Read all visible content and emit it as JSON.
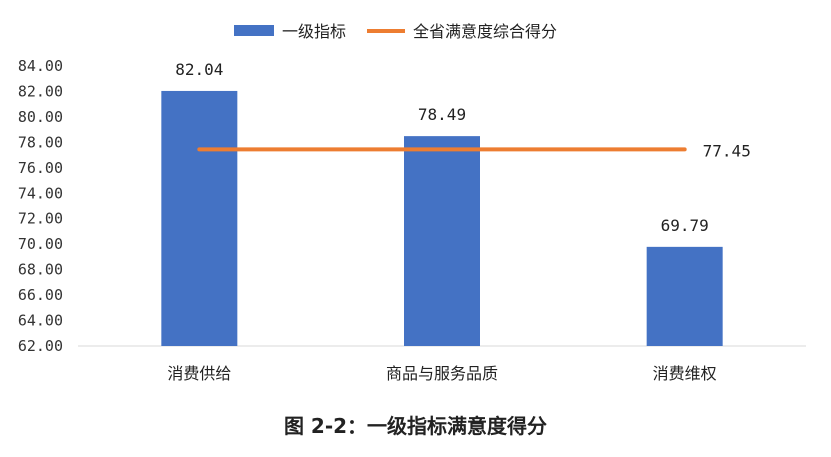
{
  "colors": {
    "bar": "#4472C4",
    "line": "#ED7D31",
    "line_label": "#E02020",
    "axis": "#D9D9D9"
  },
  "chart_data": {
    "type": "bar",
    "categories": [
      "消费供给",
      "商品与服务品质",
      "消费维权"
    ],
    "series": [
      {
        "name": "一级指标",
        "type": "bar",
        "values": [
          82.04,
          78.49,
          69.79
        ],
        "labels": [
          "82.04",
          "78.49",
          "69.79"
        ]
      },
      {
        "name": "全省满意度综合得分",
        "type": "line",
        "values": [
          77.45,
          77.45,
          77.45
        ],
        "label": "77.45"
      }
    ],
    "ylim": [
      62,
      84
    ],
    "yticks": [
      "62.00",
      "64.00",
      "66.00",
      "68.00",
      "70.00",
      "72.00",
      "74.00",
      "76.00",
      "78.00",
      "80.00",
      "82.00",
      "84.00"
    ],
    "grid": false,
    "legend": "top"
  },
  "caption": "图 2-2：一级指标满意度得分"
}
